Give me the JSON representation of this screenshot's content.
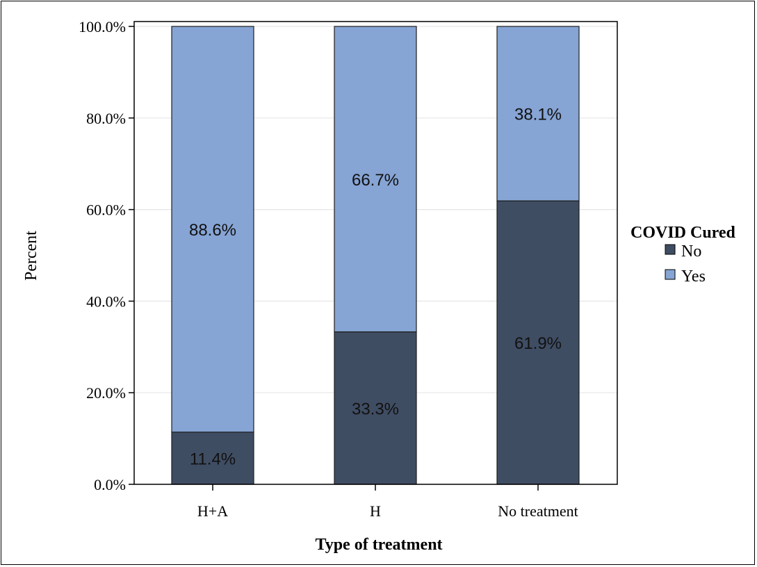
{
  "chart_data": {
    "type": "bar",
    "stacked": true,
    "xlabel": "Type of treatment",
    "ylabel": "Percent",
    "categories": [
      "H+A",
      "H",
      "No treatment"
    ],
    "series": [
      {
        "name": "No",
        "values": [
          11.4,
          33.3,
          61.9
        ],
        "labels": [
          "11.4%",
          "33.3%",
          "61.9%"
        ],
        "color": "#3f4d63"
      },
      {
        "name": "Yes",
        "values": [
          88.6,
          66.7,
          38.1
        ],
        "labels": [
          "88.6%",
          "66.7%",
          "38.1%"
        ],
        "color": "#86a4d4"
      }
    ],
    "ylim": [
      0,
      100
    ],
    "yticks": [
      0,
      20,
      40,
      60,
      80,
      100
    ],
    "ytick_labels": [
      "0.0%",
      "20.0%",
      "40.0%",
      "60.0%",
      "80.0%",
      "100.0%"
    ],
    "grid": true,
    "legend": {
      "title": "COVID Cured",
      "position": "right"
    }
  }
}
